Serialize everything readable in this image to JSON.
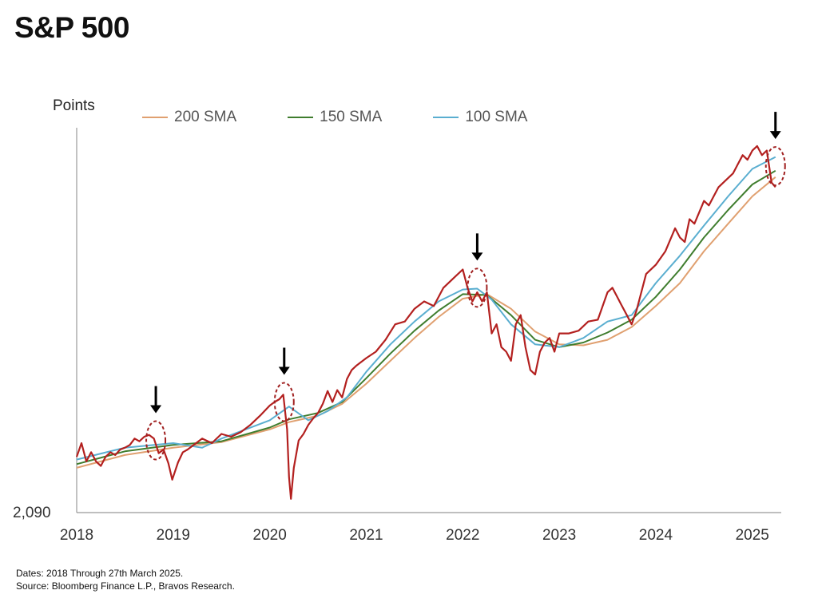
{
  "colors": {
    "price": "#b3201f",
    "sma200": "#e0a070",
    "sma150": "#3f7d2e",
    "sma100": "#5aaed0",
    "circle": "#a02020",
    "arrow": "#000000"
  },
  "chart_data": {
    "type": "line",
    "title": "S&P 500",
    "ylabel": "Points",
    "xlabel": "",
    "x_ticks": [
      "2018",
      "2019",
      "2020",
      "2021",
      "2022",
      "2023",
      "2024",
      "2025"
    ],
    "y_tick_labels": [
      "2,090"
    ],
    "xlim": [
      2018.0,
      2025.3
    ],
    "ylim": [
      2090,
      6300
    ],
    "legend_position": "top",
    "grid": false,
    "series": [
      {
        "name": "S&P 500",
        "color": "#b3201f",
        "in_legend": false,
        "x": [
          2018.0,
          2018.05,
          2018.1,
          2018.15,
          2018.2,
          2018.25,
          2018.3,
          2018.35,
          2018.4,
          2018.45,
          2018.5,
          2018.55,
          2018.6,
          2018.65,
          2018.7,
          2018.75,
          2018.8,
          2018.85,
          2018.9,
          2018.95,
          2018.99,
          2019.05,
          2019.1,
          2019.15,
          2019.2,
          2019.3,
          2019.4,
          2019.5,
          2019.6,
          2019.7,
          2019.8,
          2019.9,
          2020.0,
          2020.05,
          2020.1,
          2020.14,
          2020.18,
          2020.2,
          2020.22,
          2020.25,
          2020.3,
          2020.35,
          2020.4,
          2020.45,
          2020.5,
          2020.55,
          2020.6,
          2020.65,
          2020.7,
          2020.75,
          2020.8,
          2020.85,
          2020.9,
          2021.0,
          2021.1,
          2021.2,
          2021.3,
          2021.4,
          2021.5,
          2021.6,
          2021.7,
          2021.8,
          2021.9,
          2022.0,
          2022.05,
          2022.1,
          2022.15,
          2022.2,
          2022.25,
          2022.3,
          2022.35,
          2022.4,
          2022.45,
          2022.5,
          2022.55,
          2022.6,
          2022.65,
          2022.7,
          2022.75,
          2022.8,
          2022.85,
          2022.9,
          2022.95,
          2023.0,
          2023.1,
          2023.2,
          2023.3,
          2023.4,
          2023.5,
          2023.55,
          2023.6,
          2023.65,
          2023.7,
          2023.75,
          2023.8,
          2023.85,
          2023.9,
          2024.0,
          2024.1,
          2024.2,
          2024.25,
          2024.3,
          2024.35,
          2024.4,
          2024.5,
          2024.55,
          2024.6,
          2024.65,
          2024.7,
          2024.8,
          2024.85,
          2024.9,
          2024.95,
          2025.0,
          2025.05,
          2025.1,
          2025.15,
          2025.2,
          2025.24
        ],
        "values": [
          2700,
          2850,
          2650,
          2750,
          2650,
          2600,
          2700,
          2750,
          2720,
          2780,
          2800,
          2830,
          2900,
          2870,
          2920,
          2940,
          2900,
          2740,
          2780,
          2630,
          2450,
          2640,
          2750,
          2780,
          2820,
          2900,
          2850,
          2950,
          2920,
          2970,
          3050,
          3150,
          3260,
          3300,
          3330,
          3380,
          3000,
          2480,
          2240,
          2580,
          2880,
          2950,
          3050,
          3120,
          3180,
          3280,
          3420,
          3300,
          3430,
          3350,
          3550,
          3650,
          3700,
          3780,
          3850,
          3980,
          4150,
          4180,
          4320,
          4400,
          4350,
          4550,
          4650,
          4750,
          4550,
          4400,
          4500,
          4400,
          4500,
          4050,
          4150,
          3900,
          3850,
          3750,
          4150,
          4250,
          3900,
          3650,
          3600,
          3850,
          3950,
          4000,
          3850,
          4050,
          4050,
          4080,
          4180,
          4200,
          4500,
          4550,
          4450,
          4350,
          4250,
          4150,
          4300,
          4500,
          4700,
          4800,
          4950,
          5200,
          5100,
          5050,
          5300,
          5250,
          5500,
          5450,
          5550,
          5650,
          5700,
          5800,
          5900,
          6000,
          5950,
          6050,
          6100,
          6000,
          6050,
          5700,
          5650
        ]
      },
      {
        "name": "200 SMA",
        "color": "#e0a070",
        "in_legend": true,
        "x": [
          2018.0,
          2018.5,
          2019.0,
          2019.5,
          2020.0,
          2020.2,
          2020.5,
          2020.75,
          2021.0,
          2021.25,
          2021.5,
          2021.75,
          2022.0,
          2022.25,
          2022.5,
          2022.75,
          2023.0,
          2023.25,
          2023.5,
          2023.75,
          2024.0,
          2024.25,
          2024.5,
          2024.75,
          2025.0,
          2025.24
        ],
        "values": [
          2580,
          2720,
          2800,
          2860,
          3000,
          3080,
          3150,
          3280,
          3500,
          3750,
          4000,
          4230,
          4430,
          4480,
          4320,
          4070,
          3930,
          3920,
          3980,
          4120,
          4350,
          4600,
          4950,
          5250,
          5550,
          5760
        ]
      },
      {
        "name": "150 SMA",
        "color": "#3f7d2e",
        "in_legend": true,
        "x": [
          2018.0,
          2018.5,
          2019.0,
          2019.5,
          2020.0,
          2020.2,
          2020.5,
          2020.75,
          2021.0,
          2021.25,
          2021.5,
          2021.75,
          2022.0,
          2022.25,
          2022.5,
          2022.75,
          2023.0,
          2023.25,
          2023.5,
          2023.75,
          2024.0,
          2024.25,
          2024.5,
          2024.75,
          2025.0,
          2025.24
        ],
        "values": [
          2620,
          2760,
          2830,
          2870,
          3020,
          3110,
          3180,
          3300,
          3560,
          3830,
          4080,
          4300,
          4480,
          4470,
          4250,
          3980,
          3900,
          3950,
          4060,
          4200,
          4450,
          4750,
          5100,
          5400,
          5680,
          5830
        ]
      },
      {
        "name": "100 SMA",
        "color": "#5aaed0",
        "in_legend": true,
        "x": [
          2018.0,
          2018.5,
          2019.0,
          2019.3,
          2019.5,
          2020.0,
          2020.2,
          2020.4,
          2020.6,
          2020.8,
          2021.0,
          2021.25,
          2021.5,
          2021.75,
          2022.0,
          2022.15,
          2022.3,
          2022.5,
          2022.75,
          2023.0,
          2023.25,
          2023.5,
          2023.75,
          2024.0,
          2024.25,
          2024.5,
          2024.75,
          2025.0,
          2025.24
        ],
        "values": [
          2670,
          2800,
          2850,
          2800,
          2900,
          3100,
          3250,
          3100,
          3200,
          3350,
          3630,
          3930,
          4180,
          4400,
          4530,
          4540,
          4420,
          4150,
          3930,
          3900,
          4000,
          4180,
          4250,
          4600,
          4900,
          5230,
          5550,
          5850,
          5980
        ]
      }
    ],
    "annotations": [
      {
        "type": "circle-arrow",
        "x": 2018.82,
        "y": 2880
      },
      {
        "type": "circle-arrow",
        "x": 2020.15,
        "y": 3300
      },
      {
        "type": "circle-arrow",
        "x": 2022.15,
        "y": 4550
      },
      {
        "type": "circle-arrow",
        "x": 2025.24,
        "y": 5880
      }
    ]
  },
  "page": {
    "title": "S&P 500",
    "ylabel": "Points",
    "legend": [
      "200 SMA",
      "150 SMA",
      "100 SMA"
    ],
    "notes": {
      "dates": "Dates: 2018 Through 27th March 2025.",
      "source": "Source: Bloomberg Finance L.P., Bravos Research."
    }
  }
}
